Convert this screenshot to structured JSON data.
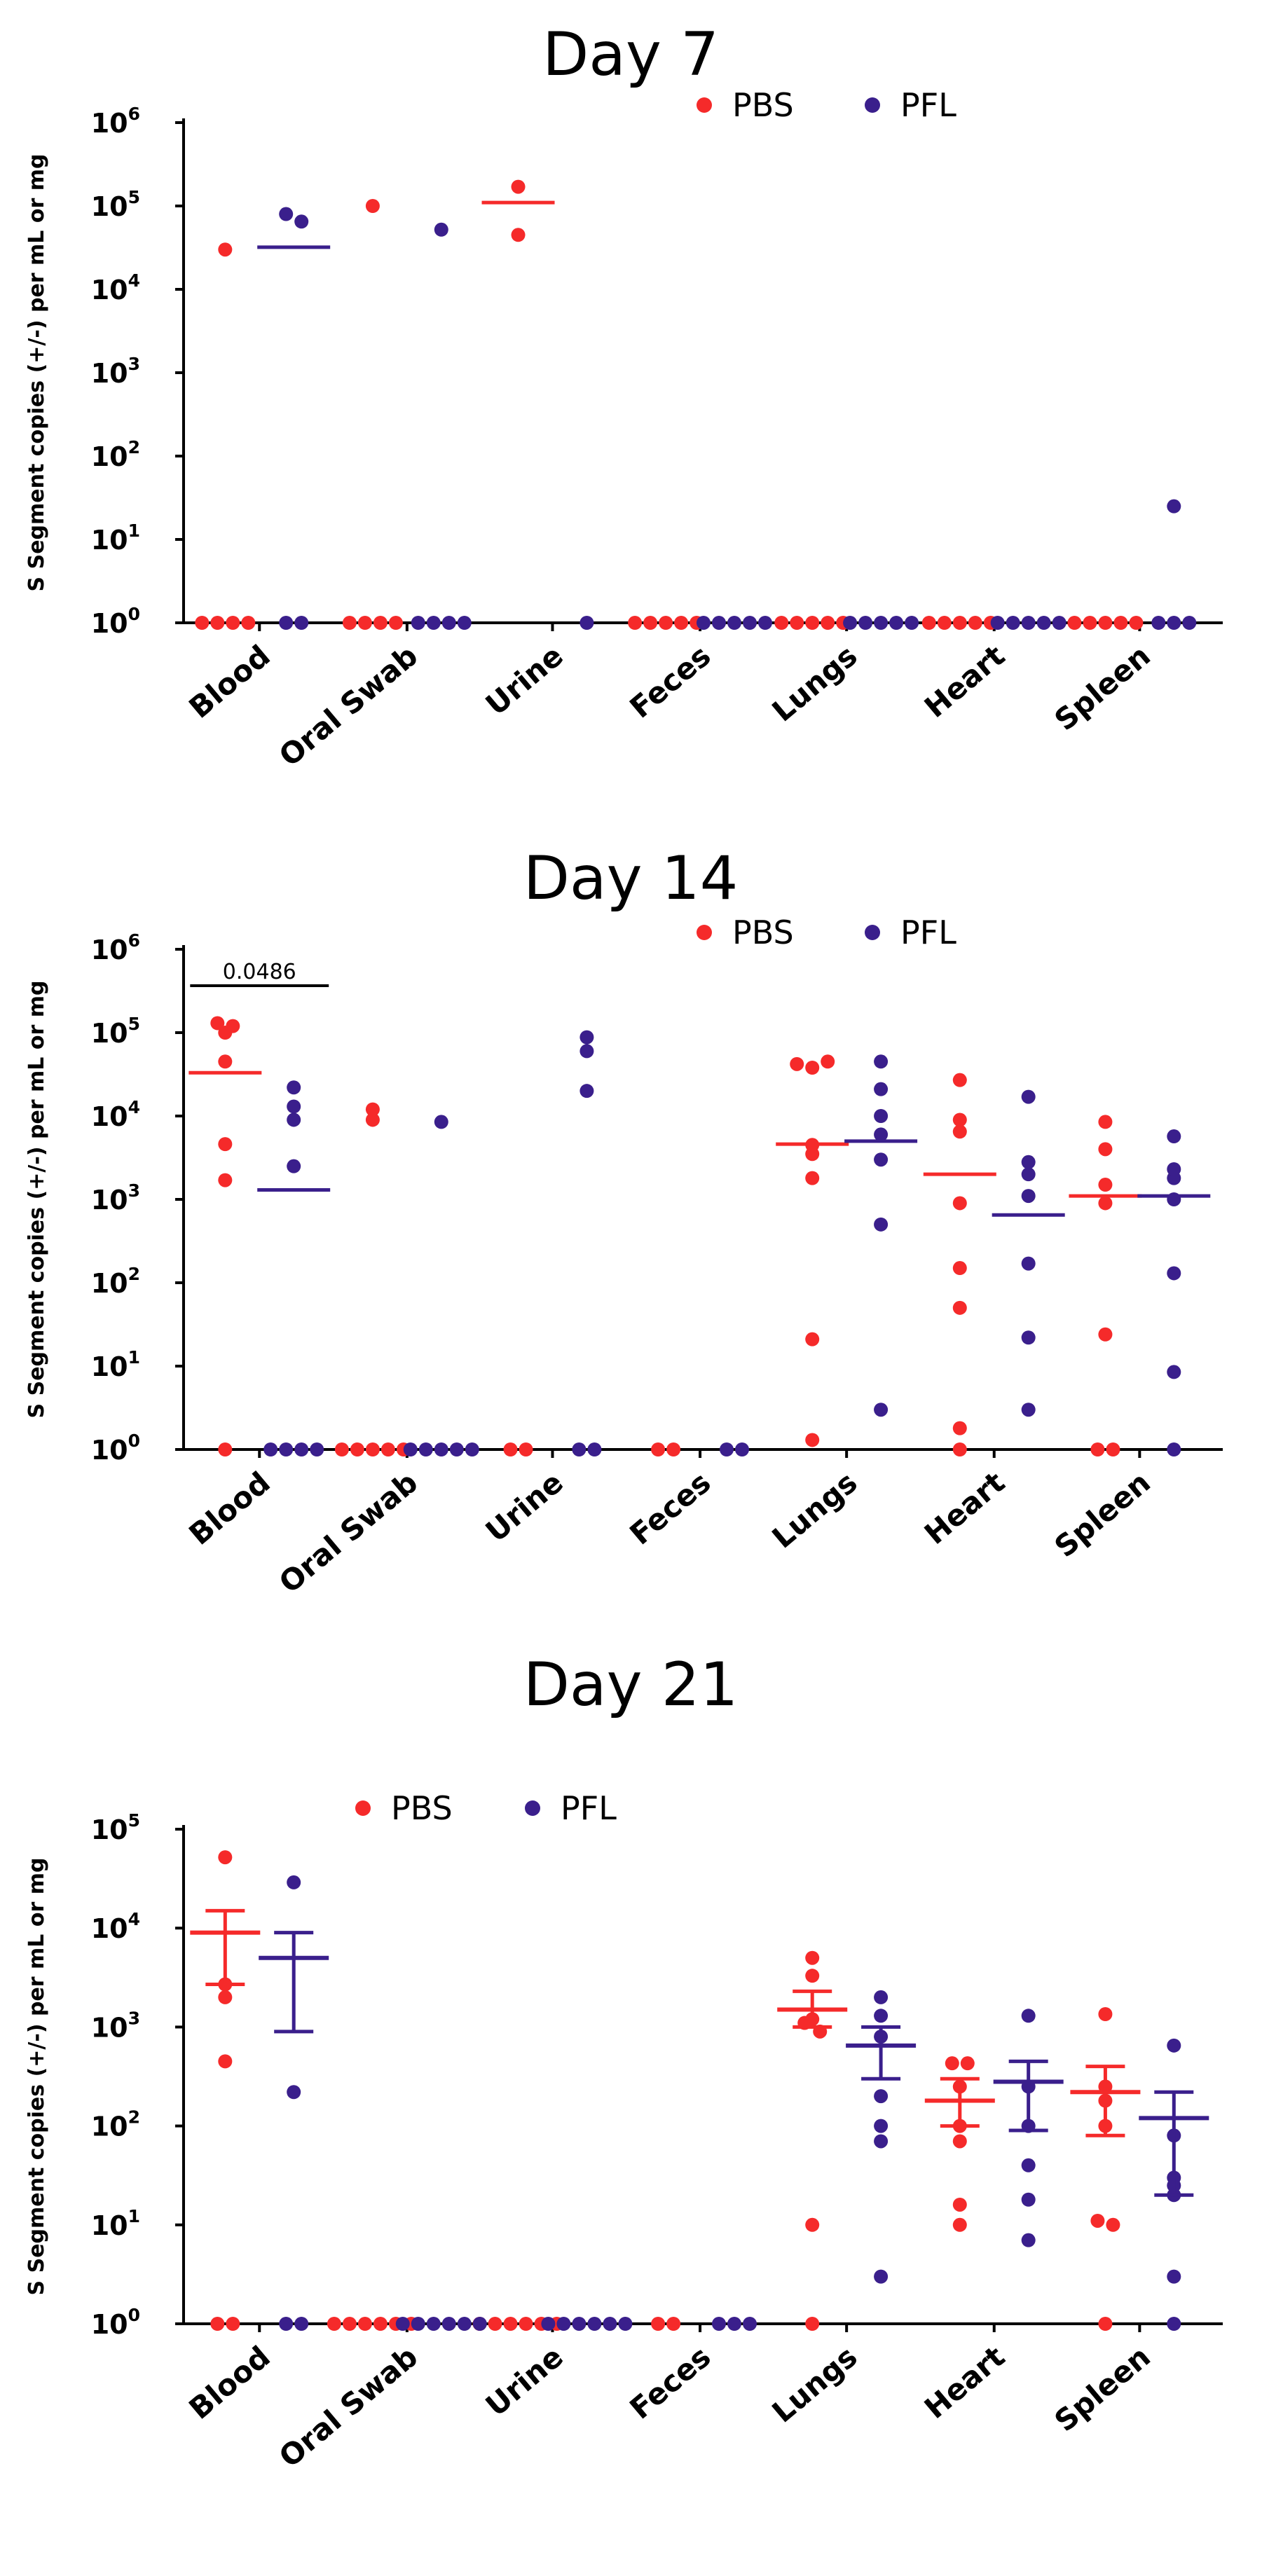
{
  "colors": {
    "PBS": "#f52a2a",
    "PFL": "#3a1f8c",
    "axis": "#000000"
  },
  "chart_data": [
    {
      "type": "scatter",
      "title": "Day 7",
      "ylabel": "S Segment copies (+/-) per mL or mg",
      "yscale": "log10",
      "ylim_exp": [
        0,
        6
      ],
      "ytick_base": "10",
      "yticks_exp": [
        "0",
        "1",
        "2",
        "3",
        "4",
        "5",
        "6"
      ],
      "categories": [
        "Blood",
        "Oral Swab",
        "Urine",
        "Feces",
        "Lungs",
        "Heart",
        "Spleen"
      ],
      "legend": [
        "PBS",
        "PFL"
      ],
      "legend_position": "top-right",
      "series": [
        {
          "name": "PBS",
          "values": [
            [
              30000,
              1,
              1,
              1,
              1
            ],
            [
              100000,
              1,
              1,
              1,
              1
            ],
            [
              170000,
              45000
            ],
            [
              1,
              1,
              1,
              1,
              1
            ],
            [
              1,
              1,
              1,
              1,
              1
            ],
            [
              1,
              1,
              1,
              1,
              1
            ],
            [
              1,
              1,
              1,
              1,
              1
            ]
          ],
          "center": [
            null,
            null,
            110000,
            null,
            null,
            null,
            null
          ]
        },
        {
          "name": "PFL",
          "values": [
            [
              80000,
              65000,
              1,
              1
            ],
            [
              52000,
              1,
              1,
              1,
              1
            ],
            [
              1
            ],
            [
              1,
              1,
              1,
              1,
              1
            ],
            [
              1,
              1,
              1,
              1,
              1
            ],
            [
              1,
              1,
              1,
              1,
              1
            ],
            [
              25,
              1,
              1,
              1
            ]
          ],
          "center": [
            32000,
            null,
            null,
            null,
            null,
            null,
            null
          ]
        }
      ],
      "annotations": []
    },
    {
      "type": "scatter",
      "title": "Day 14",
      "ylabel": "S Segment copies (+/-) per mL or mg",
      "yscale": "log10",
      "ylim_exp": [
        0,
        6
      ],
      "ytick_base": "10",
      "yticks_exp": [
        "0",
        "1",
        "2",
        "3",
        "4",
        "5",
        "6"
      ],
      "categories": [
        "Blood",
        "Oral Swab",
        "Urine",
        "Feces",
        "Lungs",
        "Heart",
        "Spleen"
      ],
      "legend": [
        "PBS",
        "PFL"
      ],
      "legend_position": "top-right",
      "series": [
        {
          "name": "PBS",
          "values": [
            [
              130000,
              100000,
              120000,
              45000,
              4600,
              1700,
              1
            ],
            [
              12000,
              9000,
              1,
              1,
              1,
              1,
              1
            ],
            [
              1,
              1
            ],
            [
              1,
              1
            ],
            [
              42000,
              38000,
              45000,
              4500,
              3500,
              1800,
              21,
              1.3
            ],
            [
              27000,
              9000,
              6500,
              900,
              150,
              50,
              1.8,
              1
            ],
            [
              8500,
              4000,
              1500,
              900,
              24,
              1,
              1
            ]
          ],
          "center": [
            33000,
            null,
            null,
            null,
            4600,
            2000,
            1100
          ]
        },
        {
          "name": "PFL",
          "values": [
            [
              22000,
              13000,
              9000,
              2500,
              1,
              1,
              1,
              1
            ],
            [
              8500,
              1,
              1,
              1,
              1,
              1
            ],
            [
              60000,
              88000,
              20000,
              1,
              1
            ],
            [
              1,
              1
            ],
            [
              45000,
              21000,
              10000,
              6000,
              3000,
              500,
              3
            ],
            [
              17000,
              2800,
              2000,
              1100,
              170,
              22,
              3
            ],
            [
              5700,
              2300,
              1800,
              1000,
              130,
              8.5,
              1
            ]
          ],
          "center": [
            1300,
            null,
            null,
            null,
            5000,
            650,
            1100
          ]
        }
      ],
      "annotations": [
        {
          "text": "0.0486",
          "between": [
            "Blood PBS",
            "Blood PFL"
          ]
        }
      ]
    },
    {
      "type": "scatter",
      "title": "Day 21",
      "ylabel": "S Segment copies (+/-) per mL or mg",
      "yscale": "log10",
      "ylim_exp": [
        0,
        5
      ],
      "ytick_base": "10",
      "yticks_exp": [
        "0",
        "1",
        "2",
        "3",
        "4",
        "5"
      ],
      "categories": [
        "Blood",
        "Oral Swab",
        "Urine",
        "Feces",
        "Lungs",
        "Heart",
        "Spleen"
      ],
      "legend": [
        "PBS",
        "PFL"
      ],
      "legend_position": "top-center",
      "error_bars": "mean ± SEM",
      "series": [
        {
          "name": "PBS",
          "values": [
            [
              52000,
              2700,
              2000,
              450,
              1,
              1
            ],
            [
              1,
              1,
              1,
              1,
              1,
              1
            ],
            [
              1,
              1,
              1,
              1,
              1,
              1
            ],
            [
              1,
              1
            ],
            [
              5000,
              3300,
              1200,
              1100,
              900,
              10,
              1
            ],
            [
              430,
              430,
              250,
              100,
              70,
              16,
              10
            ],
            [
              1350,
              250,
              180,
              100,
              11,
              10,
              1
            ]
          ],
          "mean": [
            9000,
            null,
            null,
            null,
            1500,
            180,
            220
          ],
          "err": [
            [
              2700,
              15000
            ],
            null,
            null,
            null,
            [
              1000,
              2300
            ],
            [
              100,
              300
            ],
            [
              80,
              400
            ]
          ]
        },
        {
          "name": "PFL",
          "values": [
            [
              29000,
              220,
              1,
              1
            ],
            [
              1,
              1,
              1,
              1,
              1,
              1
            ],
            [
              1,
              1,
              1,
              1,
              1,
              1
            ],
            [
              1,
              1,
              1
            ],
            [
              2000,
              1300,
              800,
              200,
              100,
              70,
              3
            ],
            [
              1300,
              250,
              100,
              40,
              18,
              7
            ],
            [
              650,
              80,
              30,
              25,
              20,
              3,
              1
            ]
          ],
          "mean": [
            5000,
            null,
            null,
            null,
            650,
            280,
            120
          ],
          "err": [
            [
              900,
              9000
            ],
            null,
            null,
            null,
            [
              300,
              1000
            ],
            [
              90,
              450
            ],
            [
              20,
              220
            ]
          ]
        }
      ],
      "annotations": []
    }
  ]
}
